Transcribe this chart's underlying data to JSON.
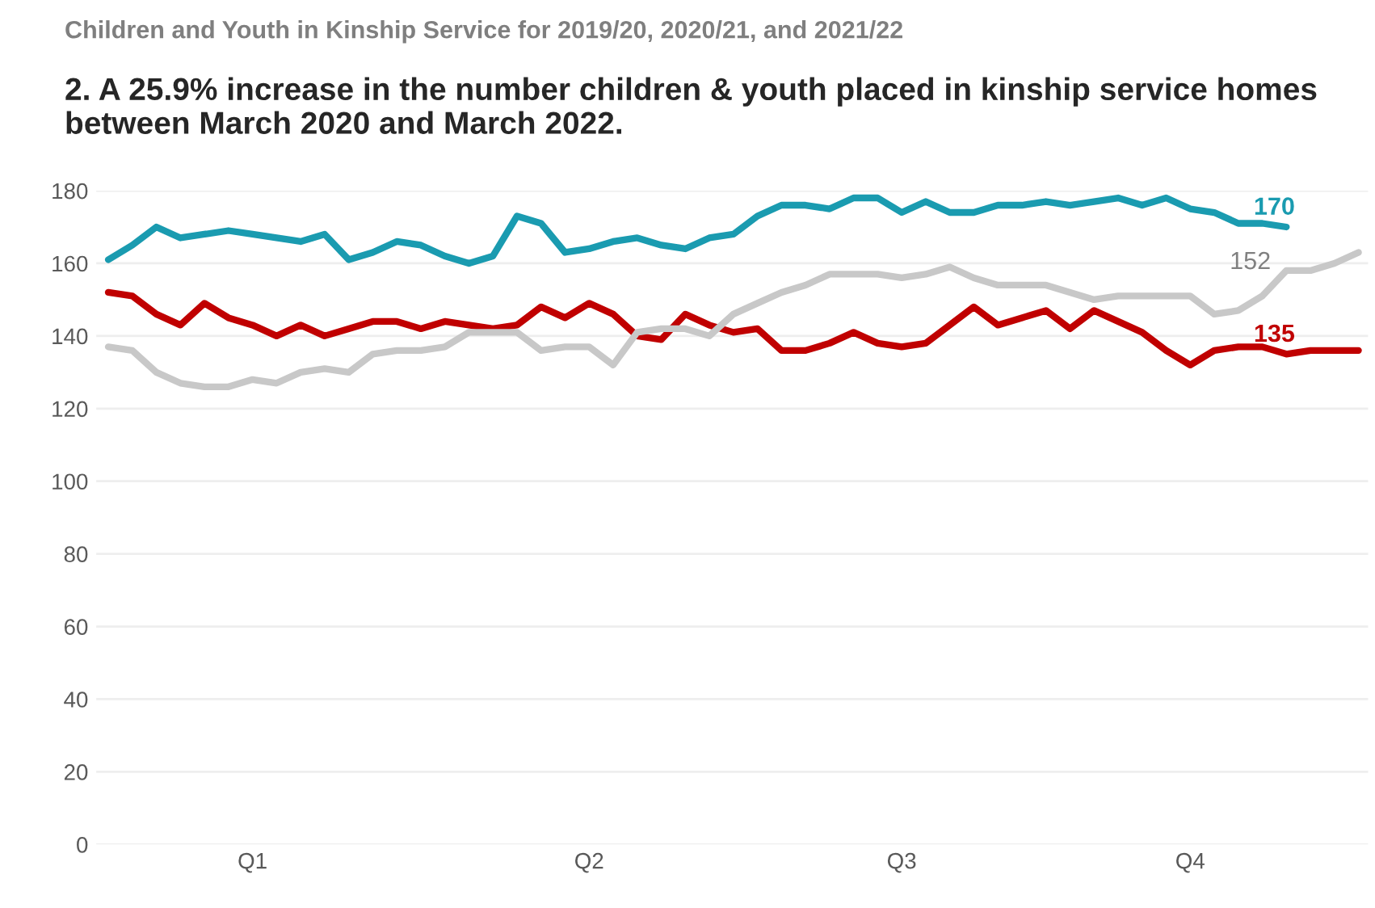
{
  "chart_data": {
    "type": "line",
    "title": "Children and Youth in Kinship Service for 2019/20, 2020/21, and 2021/22",
    "subtitle": "2. A 25.9% increase in the number children & youth placed in kinship service homes between March 2020 and March 2022.",
    "categories": [
      null,
      null,
      null,
      null,
      null,
      null,
      "Q1",
      null,
      null,
      null,
      null,
      null,
      null,
      null,
      null,
      null,
      null,
      null,
      null,
      null,
      "Q2",
      null,
      null,
      null,
      null,
      null,
      null,
      null,
      null,
      null,
      null,
      null,
      null,
      "Q3",
      null,
      null,
      null,
      null,
      null,
      null,
      null,
      null,
      null,
      null,
      null,
      "Q4",
      null,
      null,
      null,
      null,
      null,
      null,
      null
    ],
    "series": [
      {
        "color": "#c00000",
        "values": [
          152,
          151,
          146,
          143,
          149,
          145,
          143,
          140,
          143,
          140,
          142,
          144,
          144,
          142,
          144,
          143,
          142,
          143,
          148,
          145,
          149,
          146,
          140,
          139,
          146,
          143,
          141,
          142,
          136,
          136,
          138,
          141,
          138,
          137,
          138,
          143,
          148,
          143,
          145,
          147,
          142,
          147,
          144,
          141,
          136,
          132,
          136,
          137,
          137,
          135,
          136,
          136,
          136
        ]
      },
      {
        "color": "#c8c8c8",
        "values": [
          137,
          136,
          130,
          127,
          126,
          126,
          128,
          127,
          130,
          131,
          130,
          135,
          136,
          136,
          137,
          141,
          141,
          141,
          136,
          137,
          137,
          132,
          141,
          142,
          142,
          140,
          146,
          149,
          152,
          154,
          157,
          157,
          157,
          156,
          157,
          159,
          156,
          154,
          154,
          154,
          152,
          150,
          151,
          151,
          151,
          151,
          146,
          147,
          151,
          158,
          158,
          160,
          163
        ]
      },
      {
        "color": "#1a9bb0",
        "values": [
          161,
          165,
          170,
          167,
          168,
          169,
          168,
          167,
          166,
          168,
          161,
          163,
          166,
          165,
          162,
          160,
          162,
          173,
          171,
          163,
          164,
          166,
          167,
          165,
          164,
          167,
          168,
          173,
          176,
          176,
          175,
          178,
          178,
          174,
          177,
          174,
          174,
          176,
          176,
          177,
          176,
          177,
          178,
          176,
          178,
          175,
          174,
          171,
          171,
          170,
          null,
          null,
          null
        ]
      }
    ],
    "annotations": [
      "135",
      "152",
      "170"
    ],
    "ylim": [
      0,
      180
    ],
    "yticks": [
      0,
      20,
      40,
      60,
      80,
      100,
      120,
      140,
      160,
      180
    ],
    "grid": "y",
    "legend": false
  }
}
